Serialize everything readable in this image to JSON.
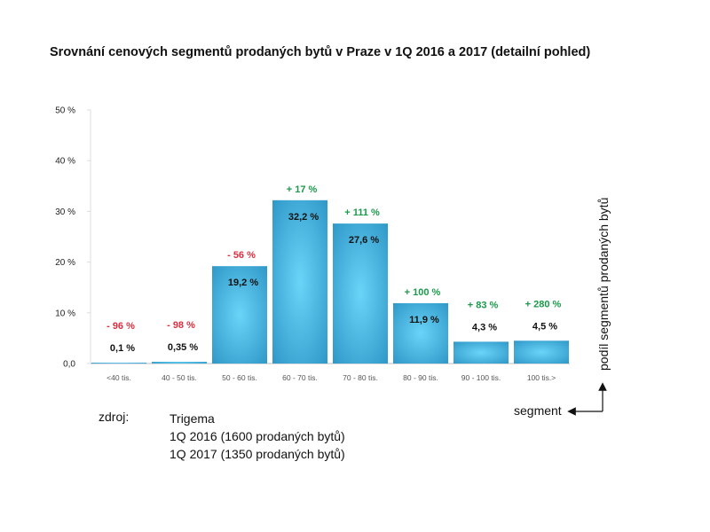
{
  "title": "Srovnání cenových segmentů prodaných bytů v Praze v 1Q 2016 a 2017 (detailní pohled)",
  "chart_data": {
    "type": "bar",
    "categories": [
      "<40 tis.",
      "40 - 50 tis.",
      "50 - 60 tis.",
      "60 - 70 tis.",
      "70 - 80 tis.",
      "80 - 90 tis.",
      "90 - 100 tis.",
      "100 tis.>"
    ],
    "values": [
      0.1,
      0.35,
      19.2,
      32.2,
      27.6,
      11.9,
      4.3,
      4.5
    ],
    "value_labels": [
      "0,1 %",
      "0,35 %",
      "19,2 %",
      "32,2 %",
      "27,6 %",
      "11,9 %",
      "4,3 %",
      "4,5 %"
    ],
    "change_labels": [
      "- 96 %",
      "- 98 %",
      "- 56 %",
      "+ 17 %",
      "+ 111 %",
      "+ 100 %",
      "+ 83 %",
      "+ 280 %"
    ],
    "change_colors": [
      "#e03040",
      "#e03040",
      "#e03040",
      "#1a9a4a",
      "#1a9a4a",
      "#1a9a4a",
      "#1a9a4a",
      "#1a9a4a"
    ],
    "ylim": [
      0,
      50
    ],
    "yticks": [
      0,
      10,
      20,
      30,
      40,
      50
    ],
    "ytick_labels": [
      "0,0",
      "10 %",
      "20 %",
      "30 %",
      "40 %",
      "50 %"
    ],
    "xlabel": "segment",
    "ylabel": "podíl segmentů prodaných bytů",
    "bar_color_center": "#6ad4f8",
    "bar_color_edge": "#2f98c8"
  },
  "source": {
    "label": "zdroj:",
    "lines": [
      "Trigema",
      "1Q 2016 (1600 prodaných bytů)",
      "1Q 2017 (1350 prodaných bytů)"
    ]
  }
}
